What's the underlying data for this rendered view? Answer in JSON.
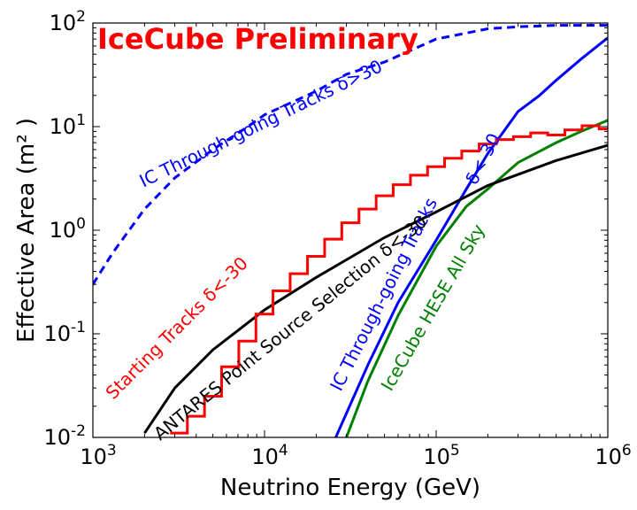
{
  "chart_data": {
    "type": "line",
    "title": "",
    "banner": "IceCube Preliminary",
    "xlabel": "Neutrino Energy (GeV)",
    "ylabel": "Effective Area (m² )",
    "xscale": "log",
    "yscale": "log",
    "xlim": [
      1000,
      1000000
    ],
    "ylim": [
      0.01,
      100
    ],
    "x_ticks": [
      {
        "value": 1000,
        "base": "10",
        "exp": "3"
      },
      {
        "value": 10000,
        "base": "10",
        "exp": "4"
      },
      {
        "value": 100000,
        "base": "10",
        "exp": "5"
      },
      {
        "value": 1000000,
        "base": "10",
        "exp": "6"
      }
    ],
    "y_ticks": [
      {
        "value": 0.01,
        "base": "10",
        "exp": "-2"
      },
      {
        "value": 0.1,
        "base": "10",
        "exp": "-1"
      },
      {
        "value": 1,
        "base": "10",
        "exp": "0"
      },
      {
        "value": 10,
        "base": "10",
        "exp": "1"
      },
      {
        "value": 100,
        "base": "10",
        "exp": "2"
      }
    ],
    "series": [
      {
        "name": "IC Through-going Tracks δ>30",
        "color": "#0000ff",
        "style": "dashed",
        "x": [
          1000,
          1300,
          2000,
          3000,
          5000,
          8000,
          10000,
          20000,
          30000,
          50000,
          100000,
          150000,
          200000,
          300000,
          500000,
          800000,
          1000000
        ],
        "y": [
          0.3,
          0.6,
          1.6,
          3.2,
          6.0,
          10,
          13,
          22,
          32,
          42,
          70,
          80,
          88,
          92,
          95,
          95,
          95
        ]
      },
      {
        "name": "IC Through-going Tracks δ<-30",
        "color": "#0000ff",
        "style": "solid",
        "x": [
          26000,
          40000,
          60000,
          100000,
          150000,
          200000,
          300000,
          400000,
          500000,
          700000,
          1000000
        ],
        "y": [
          0.01,
          0.05,
          0.2,
          0.8,
          2.5,
          5.5,
          14,
          20,
          28,
          45,
          72
        ]
      },
      {
        "name": "IceCube HESE All Sky",
        "color": "#008000",
        "style": "solid",
        "x": [
          30000,
          40000,
          60000,
          100000,
          150000,
          200000,
          300000,
          500000,
          700000,
          1000000
        ],
        "y": [
          0.01,
          0.035,
          0.15,
          0.7,
          1.7,
          2.5,
          4.5,
          7.0,
          9.0,
          11.5
        ]
      },
      {
        "name": "ANTARES Point Source Selection δ<-30",
        "color": "#000000",
        "style": "solid",
        "x": [
          2000,
          3000,
          5000,
          10000,
          20000,
          50000,
          100000,
          200000,
          500000,
          1000000
        ],
        "y": [
          0.011,
          0.03,
          0.07,
          0.17,
          0.35,
          0.85,
          1.5,
          2.7,
          4.7,
          6.6
        ]
      },
      {
        "name": "Starting Tracks δ<-30",
        "color": "#ff0000",
        "style": "step",
        "x": [
          2820,
          3550,
          4470,
          5620,
          7080,
          8910,
          11200,
          14100,
          17800,
          22400,
          28200,
          35500,
          44700,
          56200,
          70800,
          89100,
          112000,
          141000,
          178000,
          224000,
          282000,
          355000,
          447000,
          562000,
          708000,
          891000
        ],
        "y": [
          0.011,
          0.016,
          0.025,
          0.048,
          0.085,
          0.155,
          0.26,
          0.38,
          0.56,
          0.82,
          1.18,
          1.6,
          2.15,
          2.75,
          3.4,
          4.1,
          4.95,
          5.8,
          6.8,
          7.5,
          8.0,
          8.7,
          8.3,
          9.3,
          10.2,
          9.5
        ]
      }
    ],
    "annotations": [
      {
        "text": "IC Through-going Tracks δ>30",
        "color": "#0000ff"
      },
      {
        "text": "δ<-30",
        "color": "#0000ff"
      },
      {
        "text": "IC Through-going Tracks",
        "color": "#0000ff"
      },
      {
        "text": "IceCube HESE All Sky",
        "color": "#008000"
      },
      {
        "text": "ANTARES Point Source Selection δ<-30",
        "color": "#000000"
      },
      {
        "text": "Starting Tracks δ<-30",
        "color": "#ff0000"
      }
    ]
  }
}
